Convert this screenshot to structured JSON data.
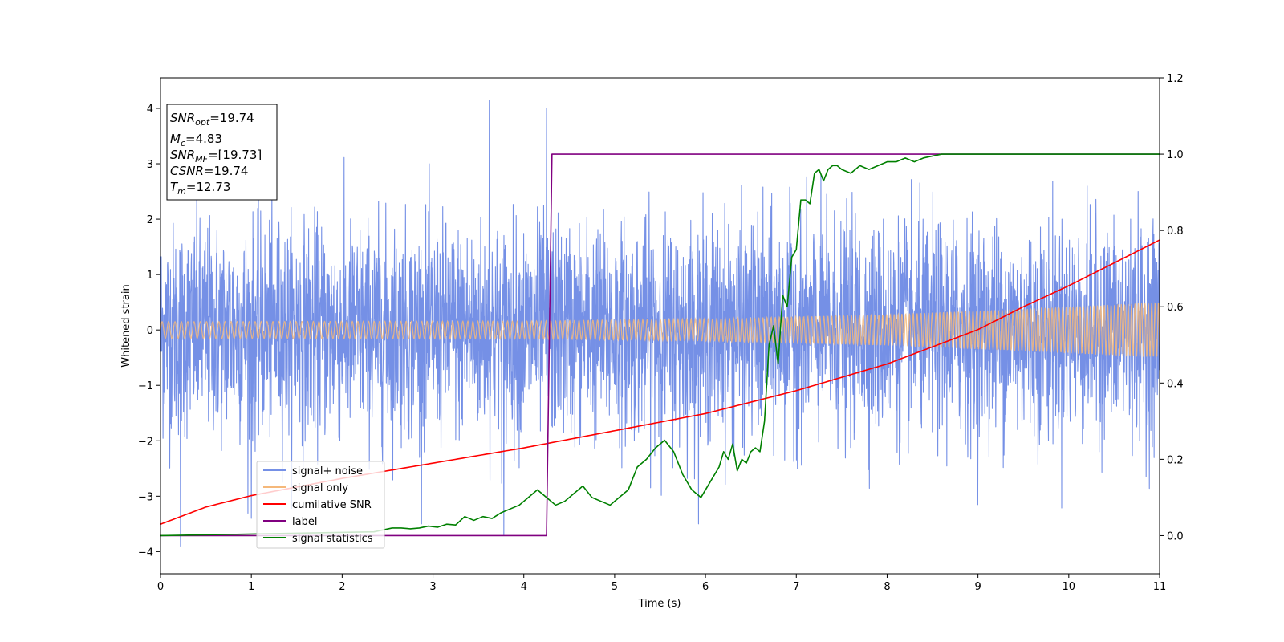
{
  "chart_data": {
    "type": "line",
    "xlabel": "Time (s)",
    "ylabel": "Whitened strain",
    "xlim": [
      0,
      11
    ],
    "ylim_left": [
      -4.4,
      4.55
    ],
    "ylim_right": [
      -0.1,
      1.2
    ],
    "xticks": [
      "0",
      "1",
      "2",
      "3",
      "4",
      "5",
      "6",
      "7",
      "8",
      "9",
      "10",
      "11"
    ],
    "yticks_left": [
      "−4",
      "−3",
      "−2",
      "−1",
      "0",
      "1",
      "2",
      "3",
      "4"
    ],
    "yticks_right": [
      "0.0",
      "0.2",
      "0.4",
      "0.6",
      "0.8",
      "1.0",
      "1.2"
    ],
    "grid": false,
    "legend_position": "lower-left",
    "annotation": {
      "snr_opt": {
        "base": "SNR",
        "sub": "opt",
        "value": "=19.74"
      },
      "mc": {
        "base": "M",
        "sub": "c",
        "value": "=4.83"
      },
      "snr_mf": {
        "base": "SNR",
        "sub": "MF",
        "value": "=[19.73]"
      },
      "csnr": {
        "base": "CSNR",
        "sub": "",
        "value": "=19.74"
      },
      "tm": {
        "base": "T",
        "sub": "m",
        "value": "=12.73"
      }
    },
    "series": [
      {
        "name": "signal+ noise",
        "axis": "left",
        "color": "#7590e6",
        "kind": "noise",
        "envelope_1sigma": [
          [
            0,
            1.0
          ],
          [
            11,
            1.0
          ]
        ],
        "typical_range": [
          -2.8,
          2.9
        ],
        "extremes": [
          4.15,
          -3.9
        ]
      },
      {
        "name": "signal only",
        "axis": "left",
        "color": "#f5b87a",
        "kind": "chirp",
        "amplitude": [
          [
            0,
            0.15
          ],
          [
            4,
            0.16
          ],
          [
            6,
            0.2
          ],
          [
            8,
            0.28
          ],
          [
            9.5,
            0.38
          ],
          [
            11,
            0.5
          ]
        ]
      },
      {
        "name": "cumilative SNR",
        "axis": "right",
        "color": "#ff0000",
        "x": [
          0,
          0.5,
          1,
          2,
          3,
          4,
          5,
          6,
          7,
          8,
          9,
          9.5,
          10,
          10.5,
          11
        ],
        "y": [
          0.03,
          0.075,
          0.105,
          0.15,
          0.19,
          0.23,
          0.275,
          0.32,
          0.38,
          0.45,
          0.54,
          0.6,
          0.655,
          0.715,
          0.775
        ]
      },
      {
        "name": "label",
        "axis": "right",
        "color": "#800080",
        "x": [
          0,
          4.25,
          4.31,
          11
        ],
        "y": [
          0,
          0,
          1,
          1
        ]
      },
      {
        "name": "signal statistics",
        "axis": "right",
        "color": "#008000",
        "x": [
          0,
          2.35,
          2.45,
          2.55,
          2.65,
          2.75,
          2.85,
          2.95,
          3.05,
          3.15,
          3.25,
          3.35,
          3.45,
          3.55,
          3.65,
          3.75,
          3.85,
          3.95,
          4.05,
          4.15,
          4.25,
          4.35,
          4.45,
          4.55,
          4.65,
          4.75,
          4.85,
          4.95,
          5.05,
          5.15,
          5.25,
          5.35,
          5.45,
          5.55,
          5.65,
          5.75,
          5.85,
          5.95,
          6.05,
          6.15,
          6.2,
          6.25,
          6.3,
          6.35,
          6.4,
          6.45,
          6.5,
          6.55,
          6.6,
          6.65,
          6.7,
          6.75,
          6.8,
          6.85,
          6.9,
          6.95,
          7.0,
          7.05,
          7.1,
          7.15,
          7.2,
          7.25,
          7.3,
          7.35,
          7.4,
          7.45,
          7.5,
          7.6,
          7.7,
          7.8,
          7.9,
          8.0,
          8.1,
          8.2,
          8.3,
          8.4,
          8.5,
          8.6,
          8.7,
          8.8,
          9.0,
          9.2,
          9.5,
          10.0,
          11.0
        ],
        "y": [
          0,
          0.01,
          0.015,
          0.02,
          0.02,
          0.018,
          0.02,
          0.025,
          0.022,
          0.03,
          0.028,
          0.05,
          0.04,
          0.05,
          0.045,
          0.06,
          0.07,
          0.08,
          0.1,
          0.12,
          0.1,
          0.08,
          0.09,
          0.11,
          0.13,
          0.1,
          0.09,
          0.08,
          0.1,
          0.12,
          0.18,
          0.2,
          0.23,
          0.25,
          0.22,
          0.16,
          0.12,
          0.1,
          0.14,
          0.18,
          0.22,
          0.2,
          0.24,
          0.17,
          0.2,
          0.19,
          0.22,
          0.23,
          0.22,
          0.3,
          0.5,
          0.55,
          0.45,
          0.63,
          0.6,
          0.73,
          0.75,
          0.88,
          0.88,
          0.87,
          0.95,
          0.96,
          0.93,
          0.96,
          0.97,
          0.97,
          0.96,
          0.95,
          0.97,
          0.96,
          0.97,
          0.98,
          0.98,
          0.99,
          0.98,
          0.99,
          0.995,
          1.0,
          1.0,
          1.0,
          1.0,
          1.0,
          1.0,
          1.0,
          1.0
        ]
      }
    ]
  }
}
